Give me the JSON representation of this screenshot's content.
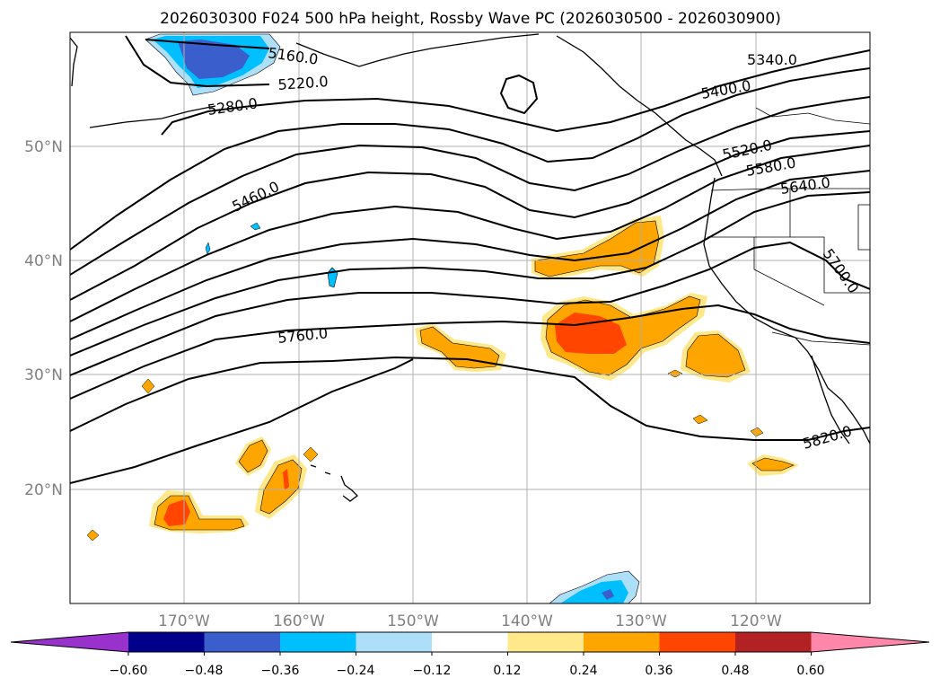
{
  "title": "2026030300 F024 500 hPa height, Rossby Wave PC (2026030500 - 2026030900)",
  "map": {
    "lat_labels": [
      "50°N",
      "40°N",
      "30°N",
      "20°N"
    ],
    "lon_labels": [
      "170°W",
      "160°W",
      "150°W",
      "140°W",
      "130°W",
      "120°W"
    ],
    "contour_labels": [
      "5160.0",
      "5220.0",
      "5280.0",
      "5340.0",
      "5400.0",
      "5460.0",
      "5520.0",
      "5580.0",
      "5640.0",
      "5700.0",
      "5760.0",
      "5820.0"
    ]
  },
  "colorbar": {
    "tick_labels": [
      "−0.60",
      "−0.48",
      "−0.36",
      "−0.24",
      "−0.12",
      "0.12",
      "0.24",
      "0.36",
      "0.48",
      "0.60"
    ],
    "colors": [
      "#9932CC",
      "#00008B",
      "#3A5FCD",
      "#00BFFF",
      "#ADE0F8",
      "#FFFFFF",
      "#FFE88A",
      "#FFA500",
      "#FF4500",
      "#B22222",
      "#FF88AA"
    ]
  },
  "chart_data": {
    "type": "map",
    "field": "500 hPa geopotential height (contours, m) with Rossby Wave PC (shaded)",
    "init": "2026030300",
    "forecast_hour": "F024",
    "pc_window": "2026030500 - 2026030900",
    "contour_levels": [
      5160,
      5220,
      5280,
      5340,
      5400,
      5460,
      5520,
      5580,
      5640,
      5700,
      5760,
      5820
    ],
    "lon_range": [
      -180,
      -110
    ],
    "lat_range": [
      10,
      60
    ],
    "colorbar_levels": [
      -0.6,
      -0.48,
      -0.36,
      -0.24,
      -0.12,
      0.12,
      0.24,
      0.36,
      0.48,
      0.6
    ],
    "colorbar_extend": "both"
  }
}
